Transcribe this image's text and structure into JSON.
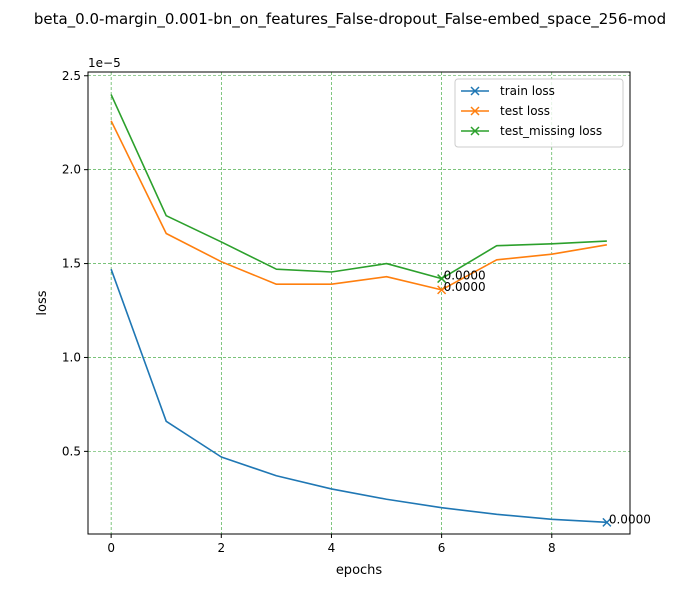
{
  "chart_data": {
    "type": "line",
    "title": "beta_0.0-margin_0.001-bn_on_features_False-dropout_False-embed_space_256-mod",
    "xlabel": "epochs",
    "ylabel": "loss",
    "y_multiplier_label": "1e−5",
    "y_scale_factor": 1e-05,
    "xlim": [
      -0.42,
      9.42
    ],
    "ylim": [
      0.06,
      2.52
    ],
    "x_ticks": [
      0,
      2,
      4,
      6,
      8
    ],
    "y_ticks": [
      0.5,
      1.0,
      1.5,
      2.0,
      2.5
    ],
    "x_tick_labels": [
      "0",
      "2",
      "4",
      "6",
      "8"
    ],
    "y_tick_labels": [
      "0.5",
      "1.0",
      "1.5",
      "2.0",
      "2.5"
    ],
    "grid": true,
    "grid_color": "#2ca02c",
    "legend_position": "top-right",
    "x": [
      0,
      1,
      2,
      3,
      4,
      5,
      6,
      7,
      8,
      9
    ],
    "series": [
      {
        "name": "train loss",
        "color": "#1f77b4",
        "values": [
          1.47,
          0.66,
          0.47,
          0.37,
          0.3,
          0.245,
          0.2,
          0.165,
          0.138,
          0.122
        ],
        "marker_index": 9,
        "annotation": "0.0000"
      },
      {
        "name": "test loss",
        "color": "#ff7f0e",
        "values": [
          2.26,
          1.66,
          1.51,
          1.39,
          1.39,
          1.43,
          1.36,
          1.52,
          1.55,
          1.6
        ],
        "marker_index": 6,
        "annotation": "0.0000"
      },
      {
        "name": "test_missing loss",
        "color": "#2ca02c",
        "values": [
          2.4,
          1.755,
          1.615,
          1.47,
          1.455,
          1.5,
          1.42,
          1.595,
          1.605,
          1.62
        ],
        "marker_index": 6,
        "annotation": "0.0000"
      }
    ]
  }
}
